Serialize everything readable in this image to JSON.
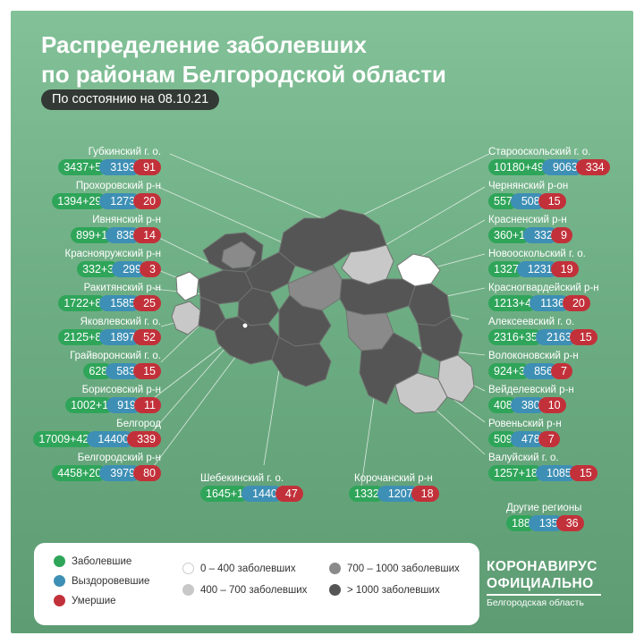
{
  "header": {
    "title_line1": "Распределение заболевших",
    "title_line2": "по районам Белгородской области",
    "date": "По состоянию на 08.10.21"
  },
  "districts_left": [
    {
      "name": "Губкинский г. о.",
      "sick": "3437+5",
      "recovered": "3193",
      "dead": "91"
    },
    {
      "name": "Прохоровский р-н",
      "sick": "1394+29",
      "recovered": "1273",
      "dead": "20"
    },
    {
      "name": "Ивнянский р-н",
      "sick": "899+1",
      "recovered": "838",
      "dead": "14"
    },
    {
      "name": "Краснояружский р-н",
      "sick": "332+3",
      "recovered": "299",
      "dead": "3"
    },
    {
      "name": "Ракитянский р-н",
      "sick": "1722+8",
      "recovered": "1585",
      "dead": "25"
    },
    {
      "name": "Яковлевский г. о.",
      "sick": "2125+8",
      "recovered": "1897",
      "dead": "52"
    },
    {
      "name": "Грайворонский г. о.",
      "sick": "628",
      "recovered": "583",
      "dead": "15"
    },
    {
      "name": "Борисовский р-н",
      "sick": "1002+1",
      "recovered": "919",
      "dead": "11"
    },
    {
      "name": "Белгород",
      "sick": "17009+42",
      "recovered": "14400",
      "dead": "339"
    },
    {
      "name": "Белгородский р-н",
      "sick": "4458+20",
      "recovered": "3979",
      "dead": "80"
    }
  ],
  "districts_right": [
    {
      "name": "Старооскольский г. о.",
      "sick": "10180+49",
      "recovered": "9063",
      "dead": "334"
    },
    {
      "name": "Чернянский р-он",
      "sick": "557",
      "recovered": "508",
      "dead": "15"
    },
    {
      "name": "Красненский р-н",
      "sick": "360+1",
      "recovered": "332",
      "dead": "9"
    },
    {
      "name": "Новооскольский г. о.",
      "sick": "1327",
      "recovered": "1231",
      "dead": "19"
    },
    {
      "name": "Красногвардейский р-н",
      "sick": "1213+4",
      "recovered": "1136",
      "dead": "20"
    },
    {
      "name": "Алексеевский г. о.",
      "sick": "2316+35",
      "recovered": "2163",
      "dead": "15"
    },
    {
      "name": "Волоконовский р-н",
      "sick": "924+3",
      "recovered": "856",
      "dead": "7"
    },
    {
      "name": "Вейделевский р-н",
      "sick": "408",
      "recovered": "380",
      "dead": "10"
    },
    {
      "name": "Ровеньский р-н",
      "sick": "509",
      "recovered": "478",
      "dead": "7"
    },
    {
      "name": "Валуйский г. о.",
      "sick": "1257+18",
      "recovered": "1085",
      "dead": "15"
    }
  ],
  "districts_bottom": [
    {
      "name": "Шебекинский г. о.",
      "sick": "1645+1",
      "recovered": "1440",
      "dead": "47"
    },
    {
      "name": "Корочанский р-н",
      "sick": "1332",
      "recovered": "1207",
      "dead": "18"
    }
  ],
  "other_regions": {
    "name": "Другие регионы",
    "sick": "188",
    "recovered": "135",
    "dead": "36"
  },
  "legend": {
    "sick": "Заболевшие",
    "recovered": "Выздоровевшие",
    "dead": "Умершие",
    "range1": "0 – 400 заболевших",
    "range2": "400 – 700 заболевших",
    "range3": "700 – 1000 заболевших",
    "range4": "> 1000 заболевших"
  },
  "brand": {
    "line1": "КОРОНАВИРУС",
    "line2": "ОФИЦИАЛЬНО",
    "line3": "Белгородская область"
  },
  "colors": {
    "sick": "#2fa55a",
    "recovered": "#3e8fb5",
    "dead": "#c2313a",
    "range1": "#ffffff",
    "range2": "#c8c8c8",
    "range3": "#8a8a8a",
    "range4": "#555555"
  }
}
